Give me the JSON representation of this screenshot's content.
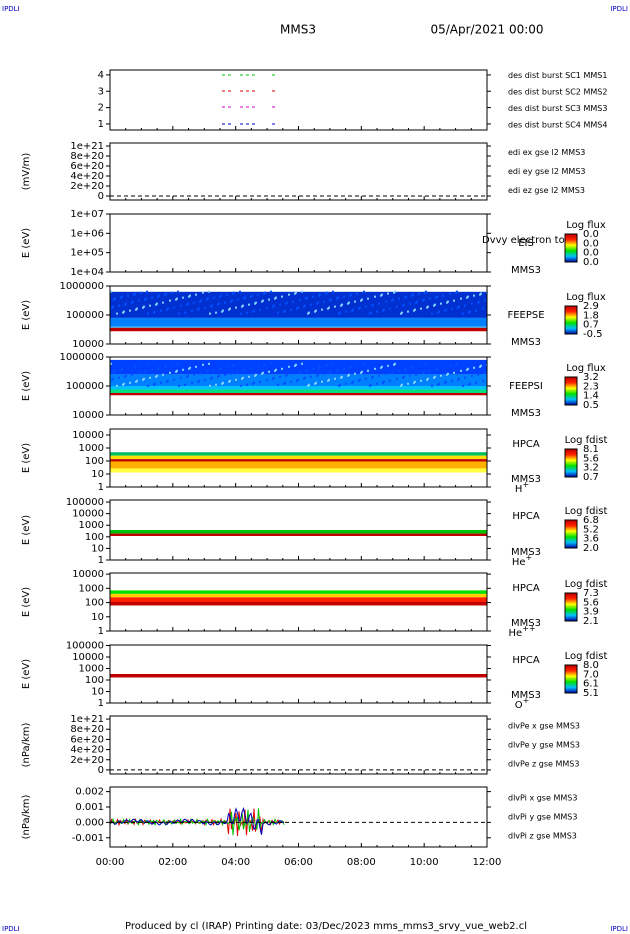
{
  "header": {
    "corner_left": "IPDLI",
    "corner_right": "IPDLI",
    "title": "MMS3",
    "date": "05/Apr/2021 00:00"
  },
  "panels": [
    {
      "ylim": [
        0.63,
        4.3
      ],
      "log": false,
      "yticks": [
        1,
        2,
        3,
        4
      ],
      "legend": [
        {
          "text": "des dist burst SC1 MMS1",
          "color": "#0000c0"
        },
        {
          "text": "des dist burst SC2 MMS2",
          "color": "#d000d0"
        },
        {
          "text": "des dist burst SC3 MMS3",
          "color": "#e00000"
        },
        {
          "text": "des dist burst SC4 MMS4",
          "color": "#00c000"
        }
      ]
    },
    {
      "ylabel": "(mV/m)",
      "ylim": [
        -8e+19,
        1.06e+21
      ],
      "log": false,
      "zero_line": true,
      "yticks": [
        0,
        {
          "value": 2e+20,
          "label": "2e+20"
        },
        {
          "value": 4e+20,
          "label": "4e+20"
        },
        {
          "value": 6e+20,
          "label": "6e+20"
        },
        {
          "value": 8e+20,
          "label": "8e+20"
        },
        {
          "value": 1e+21,
          "label": "1e+21"
        }
      ],
      "legend": [
        {
          "text": "edi ex gse l2 MMS3",
          "color": "#e00000"
        },
        {
          "text": "edi ey gse l2 MMS3",
          "color": "#00c000"
        },
        {
          "text": "edi ez gse l2 MMS3",
          "color": "#0000c0"
        }
      ]
    },
    {
      "ylabel": "E (eV)",
      "ylim": [
        10000,
        10000000
      ],
      "log": true,
      "yticks": [
        {
          "value": 10000,
          "label": "1e+04"
        },
        {
          "value": 100000,
          "label": "1e+05"
        },
        {
          "value": 1000000,
          "label": "1e+06"
        },
        {
          "value": 10000000,
          "label": "1e+07"
        }
      ],
      "instrument": "EIS",
      "spacecraft": "MMS3",
      "note": "Dvvy electron to",
      "colorbar": {
        "title": "Log flux",
        "labels": [
          "0.0",
          "0.0",
          "0.0",
          "0.0"
        ]
      }
    },
    {
      "ylabel": "E (eV)",
      "ylim": [
        10000,
        1000000
      ],
      "log": true,
      "yticks": [
        10000,
        100000,
        1000000
      ],
      "instrument": "FEEPSE",
      "spacecraft": "MMS3",
      "colorbar": {
        "title": "Log flux",
        "labels": [
          "2.9",
          "1.8",
          "0.7",
          "-0.5"
        ]
      }
    },
    {
      "ylabel": "E (eV)",
      "ylim": [
        10000,
        1000000
      ],
      "log": true,
      "yticks": [
        10000,
        100000,
        1000000
      ],
      "instrument": "FEEPSI",
      "spacecraft": "MMS3",
      "colorbar": {
        "title": "Log flux",
        "labels": [
          "3.2",
          "2.3",
          "1.4",
          "0.5"
        ]
      }
    },
    {
      "ylabel": "E (eV)",
      "ylim": [
        1,
        29000
      ],
      "log": true,
      "yticks": [
        1,
        10,
        100,
        1000,
        10000
      ],
      "instrument": "HPCA",
      "spacecraft": "MMS3",
      "species": {
        "base": "H",
        "charge": "+"
      },
      "colorbar": {
        "title": "Log fdist",
        "labels": [
          "8.1",
          "5.6",
          "3.2",
          "0.7"
        ]
      }
    },
    {
      "ylabel": "E (eV)",
      "ylim": [
        1,
        150000
      ],
      "log": true,
      "yticks": [
        1,
        10,
        100,
        1000,
        10000,
        100000
      ],
      "instrument": "HPCA",
      "spacecraft": "MMS3",
      "species": {
        "base": "He",
        "charge": "+"
      },
      "colorbar": {
        "title": "Log fdist",
        "labels": [
          "6.8",
          "5.2",
          "3.6",
          "2.0"
        ]
      }
    },
    {
      "ylabel": "E (eV)",
      "ylim": [
        1,
        12000
      ],
      "log": true,
      "yticks": [
        1,
        10,
        100,
        1000,
        10000
      ],
      "instrument": "HPCA",
      "spacecraft": "MMS3",
      "species": {
        "base": "He",
        "charge": "++"
      },
      "colorbar": {
        "title": "Log fdist",
        "labels": [
          "7.3",
          "5.6",
          "3.9",
          "2.1"
        ]
      }
    },
    {
      "ylabel": "E (eV)",
      "ylim": [
        1,
        110000
      ],
      "log": true,
      "yticks": [
        1,
        10,
        100,
        1000,
        10000,
        100000
      ],
      "instrument": "HPCA",
      "spacecraft": "MMS3",
      "species": {
        "base": "O",
        "charge": "+"
      },
      "colorbar": {
        "title": "Log fdist",
        "labels": [
          "8.0",
          "7.0",
          "6.1",
          "5.1"
        ]
      }
    },
    {
      "ylabel": "(nPa/km)",
      "ylim": [
        -8e+19,
        1.06e+21
      ],
      "log": false,
      "zero_line": true,
      "yticks": [
        0,
        {
          "value": 2e+20,
          "label": "2e+20"
        },
        {
          "value": 4e+20,
          "label": "4e+20"
        },
        {
          "value": 6e+20,
          "label": "6e+20"
        },
        {
          "value": 8e+20,
          "label": "8e+20"
        },
        {
          "value": 1e+21,
          "label": "1e+21"
        }
      ],
      "legend": [
        {
          "text": "dlvPe x gse MMS3",
          "color": "#e00000"
        },
        {
          "text": "dlvPe y gse MMS3",
          "color": "#00c000"
        },
        {
          "text": "dlvPe z gse MMS3",
          "color": "#0000c0"
        }
      ]
    },
    {
      "ylabel": "(nPa/km)",
      "ylim": [
        -0.0016,
        0.0023
      ],
      "log": false,
      "zero_line": true,
      "yticks": [
        -0.001,
        {
          "value": 0,
          "label": "0.000"
        },
        0.001,
        0.002
      ],
      "legend": [
        {
          "text": "dlvPi x gse MMS3",
          "color": "#e00000"
        },
        {
          "text": "dlvPi y gse MMS3",
          "color": "#00c000"
        },
        {
          "text": "dlvPi z gse MMS3",
          "color": "#0000c0"
        }
      ]
    }
  ],
  "xticks": [
    "00:00",
    "02:00",
    "04:00",
    "06:00",
    "08:00",
    "10:00",
    "12:00"
  ],
  "footer": "Produced by cl (IRAP)   Printing date: 03/Dec/2023   mms_mms3_srvy_vue_web2.cl"
}
